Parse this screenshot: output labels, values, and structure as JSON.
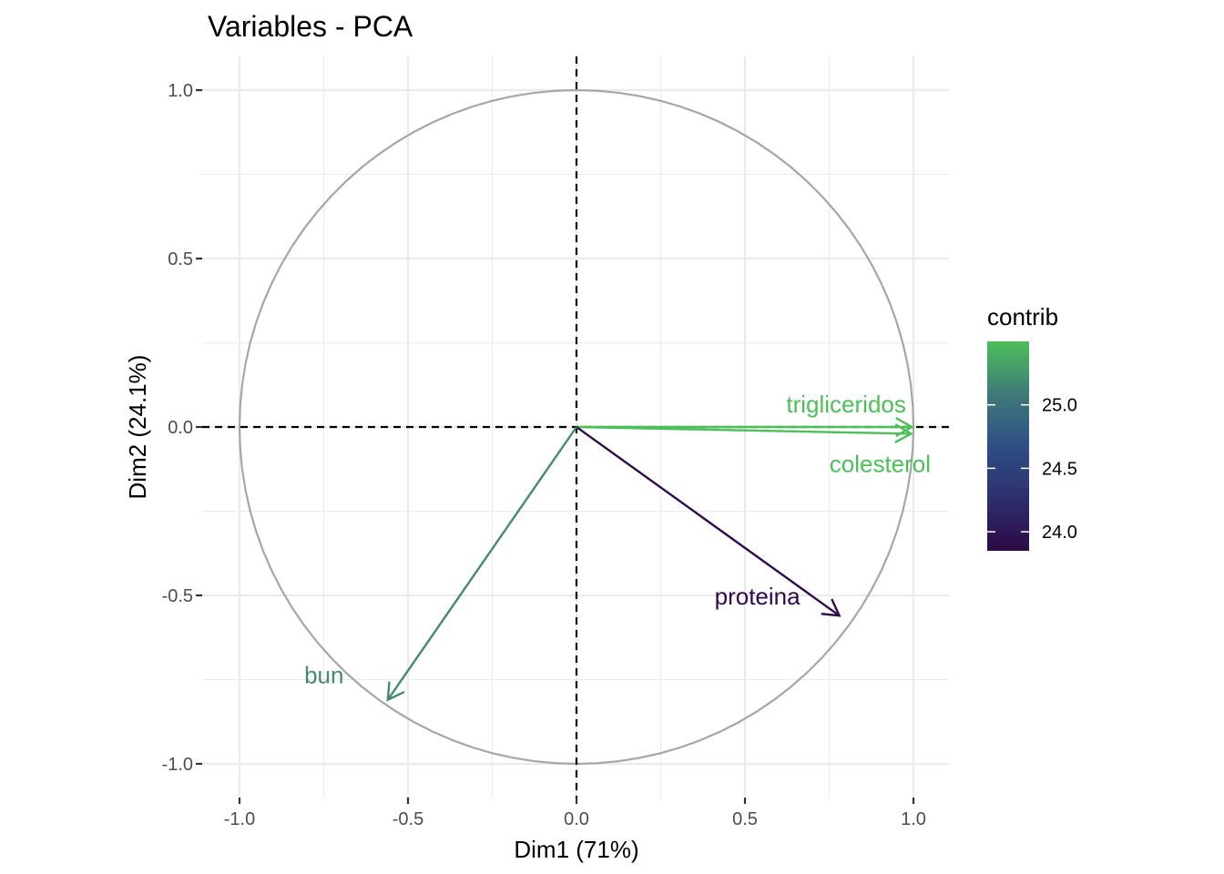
{
  "chart_data": {
    "type": "scatter",
    "subtype": "pca-variables-correlation-circle",
    "title": "Variables - PCA",
    "xlabel": "Dim1 (71%)",
    "ylabel": "Dim2 (24.1%)",
    "xlim": [
      -1.1,
      1.1
    ],
    "ylim": [
      -1.1,
      1.1
    ],
    "x_ticks": [
      -1.0,
      -0.5,
      0.0,
      0.5,
      1.0
    ],
    "x_tick_labels": [
      "-1.0",
      "-0.5",
      "0.0",
      "0.5",
      "1.0"
    ],
    "y_ticks": [
      -1.0,
      -0.5,
      0.0,
      0.5,
      1.0
    ],
    "y_tick_labels": [
      "-1.0",
      "-0.5",
      "0.0",
      "0.5",
      "1.0"
    ],
    "grid": true,
    "unit_circle": true,
    "circle_color": "#a6a6a6",
    "reference_lines": {
      "x": 0,
      "y": 0,
      "style": "dashed",
      "color": "#000000"
    },
    "background": "#ffffff",
    "grid_color": "#ebebeb",
    "variables": [
      {
        "name": "trigliceridos",
        "x": 0.995,
        "y": 0.0,
        "contrib": 25.5,
        "color": "#4cbf59"
      },
      {
        "name": "colesterol",
        "x": 0.993,
        "y": -0.02,
        "contrib": 25.5,
        "color": "#4cbf59"
      },
      {
        "name": "proteina",
        "x": 0.78,
        "y": -0.56,
        "contrib": 23.9,
        "color": "#300a4a"
      },
      {
        "name": "bun",
        "x": -0.56,
        "y": -0.81,
        "contrib": 25.2,
        "color": "#468a6c"
      }
    ],
    "legend": {
      "title": "contrib",
      "placement": "right",
      "range": [
        23.85,
        25.5
      ],
      "ticks": [
        24.0,
        24.5,
        25.0
      ],
      "tick_labels": [
        "24.0",
        "24.5",
        "25.0"
      ],
      "colors": [
        "#2d0a46",
        "#2d2e6d",
        "#2f4f86",
        "#3e7a77",
        "#4cbf59"
      ]
    }
  }
}
